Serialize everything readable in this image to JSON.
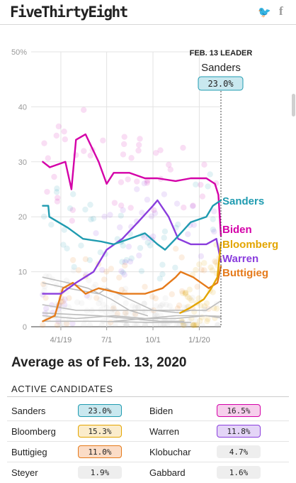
{
  "header": {
    "logo": "FiveThirtyEight",
    "twitter_icon": "twitter-icon",
    "facebook_icon": "facebook-icon"
  },
  "chart_data": {
    "type": "line",
    "title": "",
    "xlabel": "",
    "ylabel": "",
    "ylim": [
      0,
      50
    ],
    "yticks": [
      "0",
      "10",
      "20",
      "30",
      "40",
      "50%"
    ],
    "xticks": [
      "4/1/19",
      "7/1",
      "10/1",
      "1/1/20"
    ],
    "x_range": [
      "2019-02-01",
      "2020-02-13"
    ],
    "grid": true,
    "leader_annotation": {
      "date": "FEB. 13 LEADER",
      "name": "Sanders",
      "value": "23.0%"
    },
    "series": [
      {
        "name": "Sanders",
        "color": "#1f9bb0",
        "end_label": true,
        "points": [
          [
            "2019-02-24",
            22
          ],
          [
            "2019-03-07",
            22
          ],
          [
            "2019-03-09",
            20
          ],
          [
            "2019-04-15",
            18
          ],
          [
            "2019-05-15",
            16
          ],
          [
            "2019-06-20",
            15.5
          ],
          [
            "2019-07-15",
            15
          ],
          [
            "2019-08-15",
            16
          ],
          [
            "2019-09-15",
            17
          ],
          [
            "2019-10-10",
            15
          ],
          [
            "2019-10-25",
            14
          ],
          [
            "2019-11-15",
            16
          ],
          [
            "2019-12-15",
            19
          ],
          [
            "2020-01-15",
            20
          ],
          [
            "2020-01-28",
            22
          ],
          [
            "2020-02-13",
            23
          ]
        ]
      },
      {
        "name": "Biden",
        "color": "#d400a8",
        "end_label": true,
        "points": [
          [
            "2019-02-24",
            30
          ],
          [
            "2019-03-10",
            29
          ],
          [
            "2019-04-10",
            30
          ],
          [
            "2019-04-22",
            25
          ],
          [
            "2019-05-01",
            34
          ],
          [
            "2019-05-20",
            35
          ],
          [
            "2019-06-15",
            30
          ],
          [
            "2019-07-01",
            26
          ],
          [
            "2019-07-15",
            28
          ],
          [
            "2019-08-15",
            28
          ],
          [
            "2019-09-15",
            27
          ],
          [
            "2019-10-10",
            27
          ],
          [
            "2019-11-15",
            26.5
          ],
          [
            "2019-12-15",
            27
          ],
          [
            "2020-01-15",
            27
          ],
          [
            "2020-02-01",
            26
          ],
          [
            "2020-02-08",
            24
          ],
          [
            "2020-02-13",
            16.5
          ]
        ]
      },
      {
        "name": "Bloomberg",
        "color": "#e3a500",
        "end_label": true,
        "points": [
          [
            "2019-11-24",
            2.5
          ],
          [
            "2019-12-15",
            3.5
          ],
          [
            "2020-01-10",
            5
          ],
          [
            "2020-01-25",
            7
          ],
          [
            "2020-02-06",
            9
          ],
          [
            "2020-02-13",
            15.3
          ]
        ]
      },
      {
        "name": "Warren",
        "color": "#8a3ddd",
        "end_label": true,
        "points": [
          [
            "2019-02-24",
            6
          ],
          [
            "2019-04-01",
            6
          ],
          [
            "2019-05-01",
            8
          ],
          [
            "2019-06-05",
            10
          ],
          [
            "2019-07-01",
            14
          ],
          [
            "2019-08-01",
            16
          ],
          [
            "2019-09-01",
            19
          ],
          [
            "2019-10-01",
            22
          ],
          [
            "2019-10-10",
            23
          ],
          [
            "2019-11-01",
            20
          ],
          [
            "2019-11-20",
            16
          ],
          [
            "2019-12-15",
            15
          ],
          [
            "2020-01-15",
            15
          ],
          [
            "2020-02-04",
            16
          ],
          [
            "2020-02-13",
            11.8
          ]
        ]
      },
      {
        "name": "Buttigieg",
        "color": "#e57a1a",
        "end_label": true,
        "points": [
          [
            "2019-02-24",
            1
          ],
          [
            "2019-03-20",
            2
          ],
          [
            "2019-04-05",
            7
          ],
          [
            "2019-04-25",
            8
          ],
          [
            "2019-05-20",
            6
          ],
          [
            "2019-06-15",
            7
          ],
          [
            "2019-08-01",
            6
          ],
          [
            "2019-09-15",
            6
          ],
          [
            "2019-10-20",
            7
          ],
          [
            "2019-11-15",
            9
          ],
          [
            "2019-11-25",
            10
          ],
          [
            "2019-12-20",
            9
          ],
          [
            "2020-01-20",
            7
          ],
          [
            "2020-02-06",
            8
          ],
          [
            "2020-02-13",
            11
          ]
        ]
      },
      {
        "name": "",
        "color": "#bdbdbd",
        "end_label": false,
        "points": [
          [
            "2019-02-24",
            9
          ],
          [
            "2019-04-15",
            8
          ],
          [
            "2019-05-25",
            7
          ],
          [
            "2019-07-10",
            5
          ],
          [
            "2019-08-15",
            3
          ],
          [
            "2019-09-20",
            2
          ]
        ]
      },
      {
        "name": "",
        "color": "#bdbdbd",
        "end_label": false,
        "points": [
          [
            "2019-02-24",
            8
          ],
          [
            "2019-04-15",
            7
          ],
          [
            "2019-06-15",
            6
          ],
          [
            "2019-07-01",
            7
          ],
          [
            "2019-08-15",
            5
          ],
          [
            "2019-10-01",
            3
          ],
          [
            "2019-11-25",
            2.5
          ],
          [
            "2019-12-15",
            3
          ]
        ]
      },
      {
        "name": "",
        "color": "#bdbdbd",
        "end_label": false,
        "points": [
          [
            "2019-02-24",
            4
          ],
          [
            "2019-05-01",
            3
          ],
          [
            "2019-07-01",
            3
          ],
          [
            "2019-09-01",
            3
          ],
          [
            "2019-11-15",
            3
          ],
          [
            "2020-01-15",
            3
          ],
          [
            "2020-02-13",
            4.7
          ]
        ]
      },
      {
        "name": "",
        "color": "#bdbdbd",
        "end_label": false,
        "points": [
          [
            "2019-02-24",
            2
          ],
          [
            "2019-05-01",
            1.5
          ],
          [
            "2019-07-15",
            2
          ],
          [
            "2019-09-15",
            1.5
          ],
          [
            "2019-11-15",
            2
          ],
          [
            "2020-01-15",
            2
          ],
          [
            "2020-02-13",
            1.6
          ]
        ]
      },
      {
        "name": "",
        "color": "#bdbdbd",
        "end_label": false,
        "points": [
          [
            "2019-07-15",
            1
          ],
          [
            "2019-09-15",
            1.5
          ],
          [
            "2019-11-15",
            1.5
          ],
          [
            "2020-01-15",
            2
          ],
          [
            "2020-02-13",
            1.9
          ]
        ]
      },
      {
        "name": "",
        "color": "#bdbdbd",
        "end_label": false,
        "points": [
          [
            "2019-02-24",
            2.5
          ],
          [
            "2019-06-15",
            2
          ],
          [
            "2019-08-15",
            1.5
          ],
          [
            "2019-10-15",
            1
          ],
          [
            "2019-12-01",
            1
          ]
        ]
      },
      {
        "name": "",
        "color": "#bdbdbd",
        "end_label": false,
        "points": [
          [
            "2019-02-24",
            1
          ],
          [
            "2019-06-15",
            1
          ],
          [
            "2019-09-15",
            0.8
          ],
          [
            "2019-12-15",
            0.8
          ]
        ]
      }
    ]
  },
  "summary": {
    "title": "Average as of Feb. 13, 2020",
    "section_header": "ACTIVE CANDIDATES",
    "candidates": [
      {
        "name": "Sanders",
        "value": "23.0%",
        "fill": "#c9e8ef",
        "border": "#1f9bb0"
      },
      {
        "name": "Biden",
        "value": "16.5%",
        "fill": "#f6cfec",
        "border": "#d400a8"
      },
      {
        "name": "Bloomberg",
        "value": "15.3%",
        "fill": "#fbeccb",
        "border": "#e3a500"
      },
      {
        "name": "Warren",
        "value": "11.8%",
        "fill": "#e4d5f7",
        "border": "#8a3ddd"
      },
      {
        "name": "Buttigieg",
        "value": "11.0%",
        "fill": "#fbdcc6",
        "border": "#e57a1a"
      },
      {
        "name": "Klobuchar",
        "value": "4.7%",
        "fill": "#eeeeee",
        "border": "#eeeeee"
      },
      {
        "name": "Steyer",
        "value": "1.9%",
        "fill": "#eeeeee",
        "border": "#eeeeee"
      },
      {
        "name": "Gabbard",
        "value": "1.6%",
        "fill": "#eeeeee",
        "border": "#eeeeee"
      }
    ]
  }
}
